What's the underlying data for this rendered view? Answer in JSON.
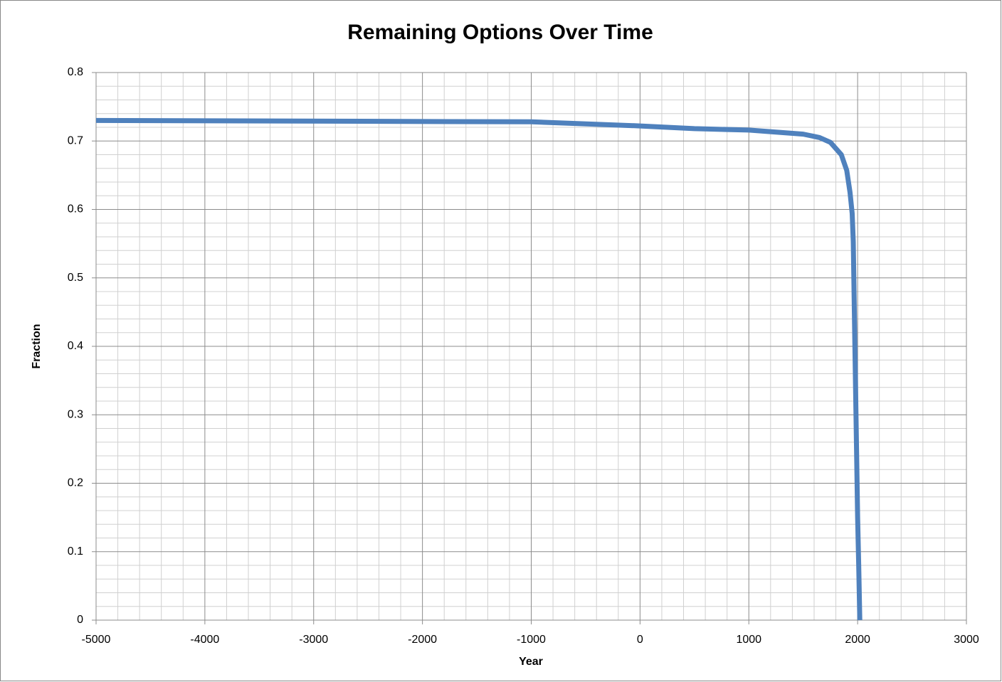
{
  "chart_data": {
    "type": "line",
    "title": "Remaining Options Over Time",
    "x_label": "Year",
    "y_label": "Fraction",
    "series": [
      {
        "name": "Fraction",
        "color": "#4f81bd",
        "x": [
          -5000,
          -1000,
          0,
          500,
          1000,
          1500,
          1650,
          1750,
          1850,
          1900,
          1930,
          1950,
          1960,
          1970,
          1980,
          1990,
          2000,
          2010,
          2020
        ],
        "values": [
          0.73,
          0.728,
          0.722,
          0.718,
          0.716,
          0.71,
          0.705,
          0.698,
          0.68,
          0.657,
          0.625,
          0.594,
          0.553,
          0.45,
          0.35,
          0.25,
          0.15,
          0.08,
          0
        ]
      }
    ],
    "xlim": [
      -5000,
      3000
    ],
    "xticks": [
      -5000,
      -4000,
      -3000,
      -2000,
      -1000,
      0,
      1000,
      2000,
      3000
    ],
    "ylim": [
      0,
      0.8
    ],
    "yticks": [
      0,
      0.1,
      0.2,
      0.3,
      0.4,
      0.5,
      0.6,
      0.7,
      0.8
    ],
    "grid": true
  }
}
